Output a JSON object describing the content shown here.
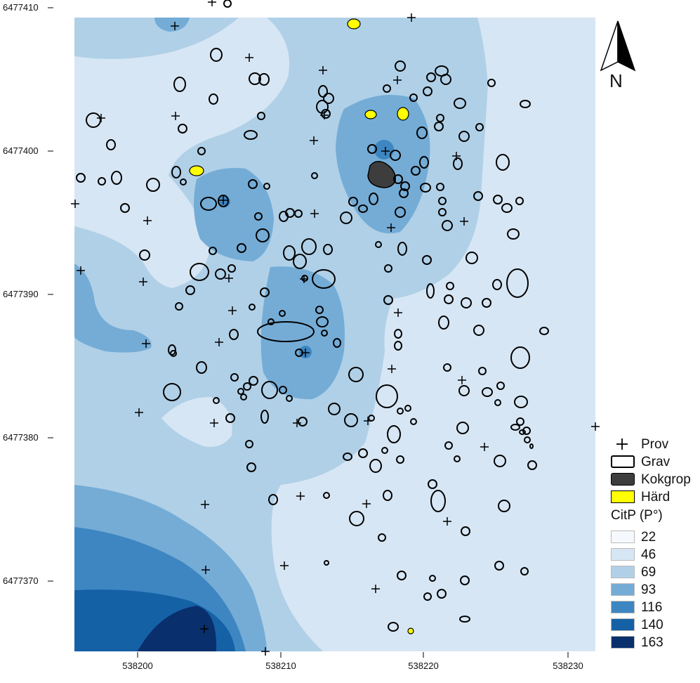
{
  "map": {
    "y_axis_labels": [
      "6477410",
      "6477400",
      "6477390",
      "6477380",
      "6477370"
    ],
    "x_axis_labels": [
      "538200",
      "538210",
      "538220",
      "538230"
    ],
    "north_label": "N"
  },
  "legend": {
    "symbols": [
      {
        "label": "Prov",
        "icon": "plus-icon"
      },
      {
        "label": "Grav",
        "color": "#ffffff",
        "stroke": "#000000"
      },
      {
        "label": "Kokgrop",
        "color": "#3d3d3d",
        "stroke": "#000000"
      },
      {
        "label": "Härd",
        "color": "#ffff00",
        "stroke": "#000000"
      }
    ],
    "title": "CitP (P°)",
    "classes": [
      {
        "label": "22",
        "color": "#f5f9fd"
      },
      {
        "label": "46",
        "color": "#d7e6f4"
      },
      {
        "label": "69",
        "color": "#b0d0e7"
      },
      {
        "label": "93",
        "color": "#74acd6"
      },
      {
        "label": "116",
        "color": "#3d86c2"
      },
      {
        "label": "140",
        "color": "#1561a6"
      },
      {
        "label": "163",
        "color": "#0a2f6d"
      }
    ]
  }
}
